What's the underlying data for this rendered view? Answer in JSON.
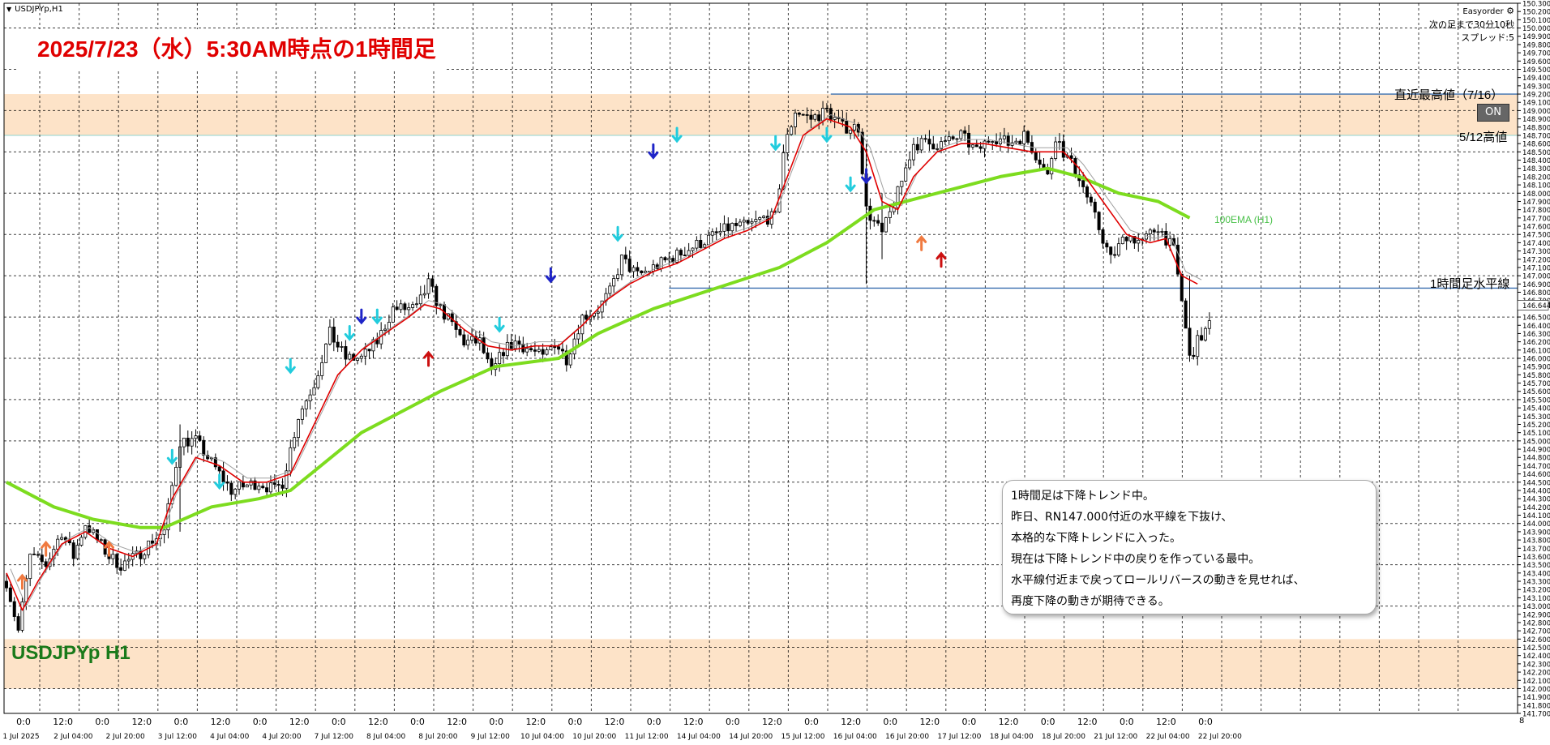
{
  "window": {
    "caption": "USDJPYp,H1",
    "symbol_label": "USDJPYp H1",
    "title": "2025/7/23（水）5:30AM時点の1時間足",
    "axis_corner": "8"
  },
  "ea_panel": {
    "name": "Easyorder",
    "settings_icon": "gear-icon",
    "lines": [
      "次の足まで30分10秒",
      "スプレッド:5"
    ],
    "on_button": "ON"
  },
  "comment_box": {
    "lines": [
      "1時間足は下降トレンド中。",
      "昨日、RN147.000付近の水平線を下抜け、",
      "本格的な下降トレンドに入った。",
      "現在は下降トレンド中の戻りを作っている最中。",
      "水平線付近まで戻ってロールリバースの動きを見せれば、",
      "再度下降の動きが期待できる。"
    ]
  },
  "colors": {
    "zone_fill": "#fde3c8",
    "candle": "#000000",
    "ema100": "#7ddc1f",
    "fast_ma": "#e00000",
    "slow_ma": "#a0a0a0",
    "hline": "#3a6fb0",
    "up_arrow": "#1e24c8",
    "cyan_arrow": "#22ccdd",
    "orange_arrow": "#f07a40",
    "red_arrow": "#cc1010"
  },
  "chart_data": {
    "type": "candlestick",
    "symbol": "USDJPYp",
    "timeframe": "H1",
    "ylim": [
      141.7,
      150.3
    ],
    "grid": true,
    "y_ticks": [
      "150.300",
      "150.200",
      "150.100",
      "150.000",
      "149.900",
      "149.800",
      "149.700",
      "149.600",
      "149.500",
      "149.400",
      "149.300",
      "149.200",
      "149.100",
      "149.000",
      "148.900",
      "148.800",
      "148.700",
      "148.600",
      "148.500",
      "148.400",
      "148.300",
      "148.200",
      "148.100",
      "148.000",
      "147.900",
      "147.800",
      "147.700",
      "147.600",
      "147.500",
      "147.400",
      "147.300",
      "147.200",
      "147.100",
      "147.000",
      "146.900",
      "146.800",
      "146.700",
      "146.644",
      "146.500",
      "146.400",
      "146.300",
      "146.200",
      "146.100",
      "146.000",
      "145.900",
      "145.800",
      "145.700",
      "145.600",
      "145.500",
      "145.400",
      "145.300",
      "145.200",
      "145.100",
      "145.000",
      "144.900",
      "144.800",
      "144.700",
      "144.600",
      "144.500",
      "144.400",
      "144.300",
      "144.200",
      "144.100",
      "144.000",
      "143.900",
      "143.800",
      "143.700",
      "143.600",
      "143.500",
      "143.400",
      "143.300",
      "143.200",
      "143.100",
      "143.000",
      "142.900",
      "142.800",
      "142.700",
      "142.600",
      "142.500",
      "142.400",
      "142.300",
      "142.200",
      "142.100",
      "142.000",
      "141.900",
      "141.800",
      "141.700"
    ],
    "current_price": "146.644",
    "x_top_labels": [
      "0:0",
      "12:0",
      "0:0",
      "12:0",
      "0:0",
      "12:0",
      "0:0",
      "12:0",
      "0:0",
      "12:0",
      "0:0",
      "12:0",
      "0:0",
      "12:0",
      "0:0",
      "12:0",
      "0:0",
      "12:0",
      "0:0",
      "12:0",
      "0:0",
      "12:0",
      "0:0",
      "12:0",
      "0:0",
      "12:0",
      "0:0",
      "12:0",
      "0:0",
      "12:0",
      "0:0"
    ],
    "x_bottom_labels": [
      "1 Jul 2025",
      "2 Jul 04:00",
      "2 Jul 20:00",
      "3 Jul 12:00",
      "4 Jul 04:00",
      "4 Jul 20:00",
      "7 Jul 12:00",
      "8 Jul 04:00",
      "8 Jul 20:00",
      "9 Jul 12:00",
      "10 Jul 04:00",
      "10 Jul 20:00",
      "11 Jul 12:00",
      "14 Jul 04:00",
      "14 Jul 20:00",
      "15 Jul 12:00",
      "16 Jul 04:00",
      "16 Jul 20:00",
      "17 Jul 12:00",
      "18 Jul 04:00",
      "18 Jul 20:00",
      "21 Jul 12:00",
      "22 Jul 04:00",
      "22 Jul 20:00"
    ],
    "price_path": [
      [
        0,
        143.3
      ],
      [
        3,
        142.7
      ],
      [
        6,
        143.6
      ],
      [
        10,
        143.5
      ],
      [
        14,
        143.9
      ],
      [
        17,
        143.6
      ],
      [
        20,
        144.0
      ],
      [
        26,
        143.6
      ],
      [
        29,
        143.5
      ],
      [
        33,
        143.6
      ],
      [
        37,
        143.8
      ],
      [
        40,
        143.9
      ],
      [
        44,
        145.0
      ],
      [
        48,
        145.0
      ],
      [
        51,
        144.8
      ],
      [
        54,
        144.6
      ],
      [
        57,
        144.4
      ],
      [
        60,
        144.45
      ],
      [
        64,
        144.5
      ],
      [
        68,
        144.4
      ],
      [
        70,
        144.5
      ],
      [
        74,
        145.3
      ],
      [
        78,
        145.7
      ],
      [
        82,
        146.3
      ],
      [
        86,
        146.0
      ],
      [
        90,
        146.0
      ],
      [
        94,
        146.2
      ],
      [
        98,
        146.6
      ],
      [
        101,
        146.6
      ],
      [
        104,
        146.6
      ],
      [
        107,
        146.9
      ],
      [
        110,
        146.6
      ],
      [
        113,
        146.4
      ],
      [
        116,
        146.2
      ],
      [
        120,
        146.2
      ],
      [
        123,
        145.8
      ],
      [
        126,
        146.1
      ],
      [
        129,
        146.2
      ],
      [
        133,
        146.1
      ],
      [
        136,
        146.0
      ],
      [
        139,
        146.2
      ],
      [
        142,
        146.0
      ],
      [
        146,
        146.5
      ],
      [
        150,
        146.6
      ],
      [
        153,
        146.8
      ],
      [
        156,
        147.2
      ],
      [
        160,
        147.0
      ],
      [
        164,
        147.1
      ],
      [
        168,
        147.2
      ],
      [
        172,
        147.3
      ],
      [
        176,
        147.4
      ],
      [
        180,
        147.5
      ],
      [
        184,
        147.6
      ],
      [
        188,
        147.6
      ],
      [
        192,
        147.7
      ],
      [
        195,
        147.7
      ],
      [
        197,
        148.5
      ],
      [
        200,
        149.0
      ],
      [
        204,
        148.9
      ],
      [
        208,
        149.0
      ],
      [
        212,
        148.8
      ],
      [
        216,
        148.8
      ],
      [
        218,
        147.8
      ],
      [
        222,
        147.5
      ],
      [
        226,
        148.0
      ],
      [
        230,
        148.6
      ],
      [
        234,
        148.6
      ],
      [
        238,
        148.6
      ],
      [
        242,
        148.7
      ],
      [
        246,
        148.5
      ],
      [
        250,
        148.7
      ],
      [
        254,
        148.6
      ],
      [
        258,
        148.7
      ],
      [
        262,
        148.4
      ],
      [
        264,
        148.2
      ],
      [
        266,
        148.7
      ],
      [
        268,
        148.5
      ],
      [
        272,
        148.2
      ],
      [
        276,
        147.7
      ],
      [
        280,
        147.2
      ],
      [
        284,
        147.5
      ],
      [
        288,
        147.4
      ],
      [
        292,
        147.6
      ],
      [
        296,
        147.3
      ],
      [
        298,
        146.7
      ],
      [
        300,
        146.0
      ],
      [
        302,
        146.2
      ],
      [
        305,
        146.4
      ]
    ],
    "ema100": [
      [
        0,
        144.5
      ],
      [
        12,
        144.2
      ],
      [
        22,
        144.05
      ],
      [
        34,
        143.95
      ],
      [
        40,
        143.95
      ],
      [
        52,
        144.2
      ],
      [
        64,
        144.3
      ],
      [
        72,
        144.4
      ],
      [
        90,
        145.1
      ],
      [
        110,
        145.6
      ],
      [
        124,
        145.9
      ],
      [
        140,
        146.0
      ],
      [
        150,
        146.3
      ],
      [
        164,
        146.6
      ],
      [
        180,
        146.85
      ],
      [
        196,
        147.1
      ],
      [
        208,
        147.4
      ],
      [
        220,
        147.8
      ],
      [
        236,
        148.0
      ],
      [
        252,
        148.2
      ],
      [
        264,
        148.3
      ],
      [
        272,
        148.2
      ],
      [
        282,
        148.0
      ],
      [
        292,
        147.9
      ],
      [
        300,
        147.7
      ]
    ],
    "fast_ma": [
      [
        0,
        143.4
      ],
      [
        4,
        142.95
      ],
      [
        8,
        143.3
      ],
      [
        14,
        143.75
      ],
      [
        20,
        143.9
      ],
      [
        26,
        143.7
      ],
      [
        32,
        143.6
      ],
      [
        38,
        143.75
      ],
      [
        42,
        144.3
      ],
      [
        48,
        144.8
      ],
      [
        54,
        144.7
      ],
      [
        60,
        144.5
      ],
      [
        66,
        144.5
      ],
      [
        72,
        144.6
      ],
      [
        78,
        145.2
      ],
      [
        84,
        145.8
      ],
      [
        90,
        146.1
      ],
      [
        96,
        146.3
      ],
      [
        102,
        146.5
      ],
      [
        106,
        146.65
      ],
      [
        110,
        146.6
      ],
      [
        116,
        146.35
      ],
      [
        122,
        146.15
      ],
      [
        128,
        146.1
      ],
      [
        134,
        146.15
      ],
      [
        140,
        146.15
      ],
      [
        146,
        146.4
      ],
      [
        152,
        146.7
      ],
      [
        158,
        146.9
      ],
      [
        164,
        147.05
      ],
      [
        170,
        147.15
      ],
      [
        176,
        147.3
      ],
      [
        182,
        147.45
      ],
      [
        188,
        147.55
      ],
      [
        194,
        147.7
      ],
      [
        198,
        148.2
      ],
      [
        202,
        148.7
      ],
      [
        208,
        148.9
      ],
      [
        214,
        148.8
      ],
      [
        218,
        148.5
      ],
      [
        222,
        147.9
      ],
      [
        226,
        147.8
      ],
      [
        230,
        148.2
      ],
      [
        236,
        148.5
      ],
      [
        242,
        148.6
      ],
      [
        248,
        148.6
      ],
      [
        254,
        148.55
      ],
      [
        260,
        148.5
      ],
      [
        264,
        148.5
      ],
      [
        268,
        148.5
      ],
      [
        272,
        148.3
      ],
      [
        278,
        147.9
      ],
      [
        284,
        147.5
      ],
      [
        290,
        147.4
      ],
      [
        294,
        147.45
      ],
      [
        298,
        147.0
      ],
      [
        302,
        146.9
      ]
    ],
    "hlines": [
      {
        "label": "直近最高値（7/16）",
        "price": 149.2,
        "from_bar": 209
      },
      {
        "label": "1時間足水平線",
        "price": 146.85,
        "from_bar": 168
      }
    ],
    "zone_labels": [
      "5/12高値"
    ],
    "zones": [
      [
        148.7,
        149.2
      ],
      [
        142.0,
        142.6
      ]
    ],
    "indicator_labels": [
      "100EMA (H1)"
    ]
  }
}
